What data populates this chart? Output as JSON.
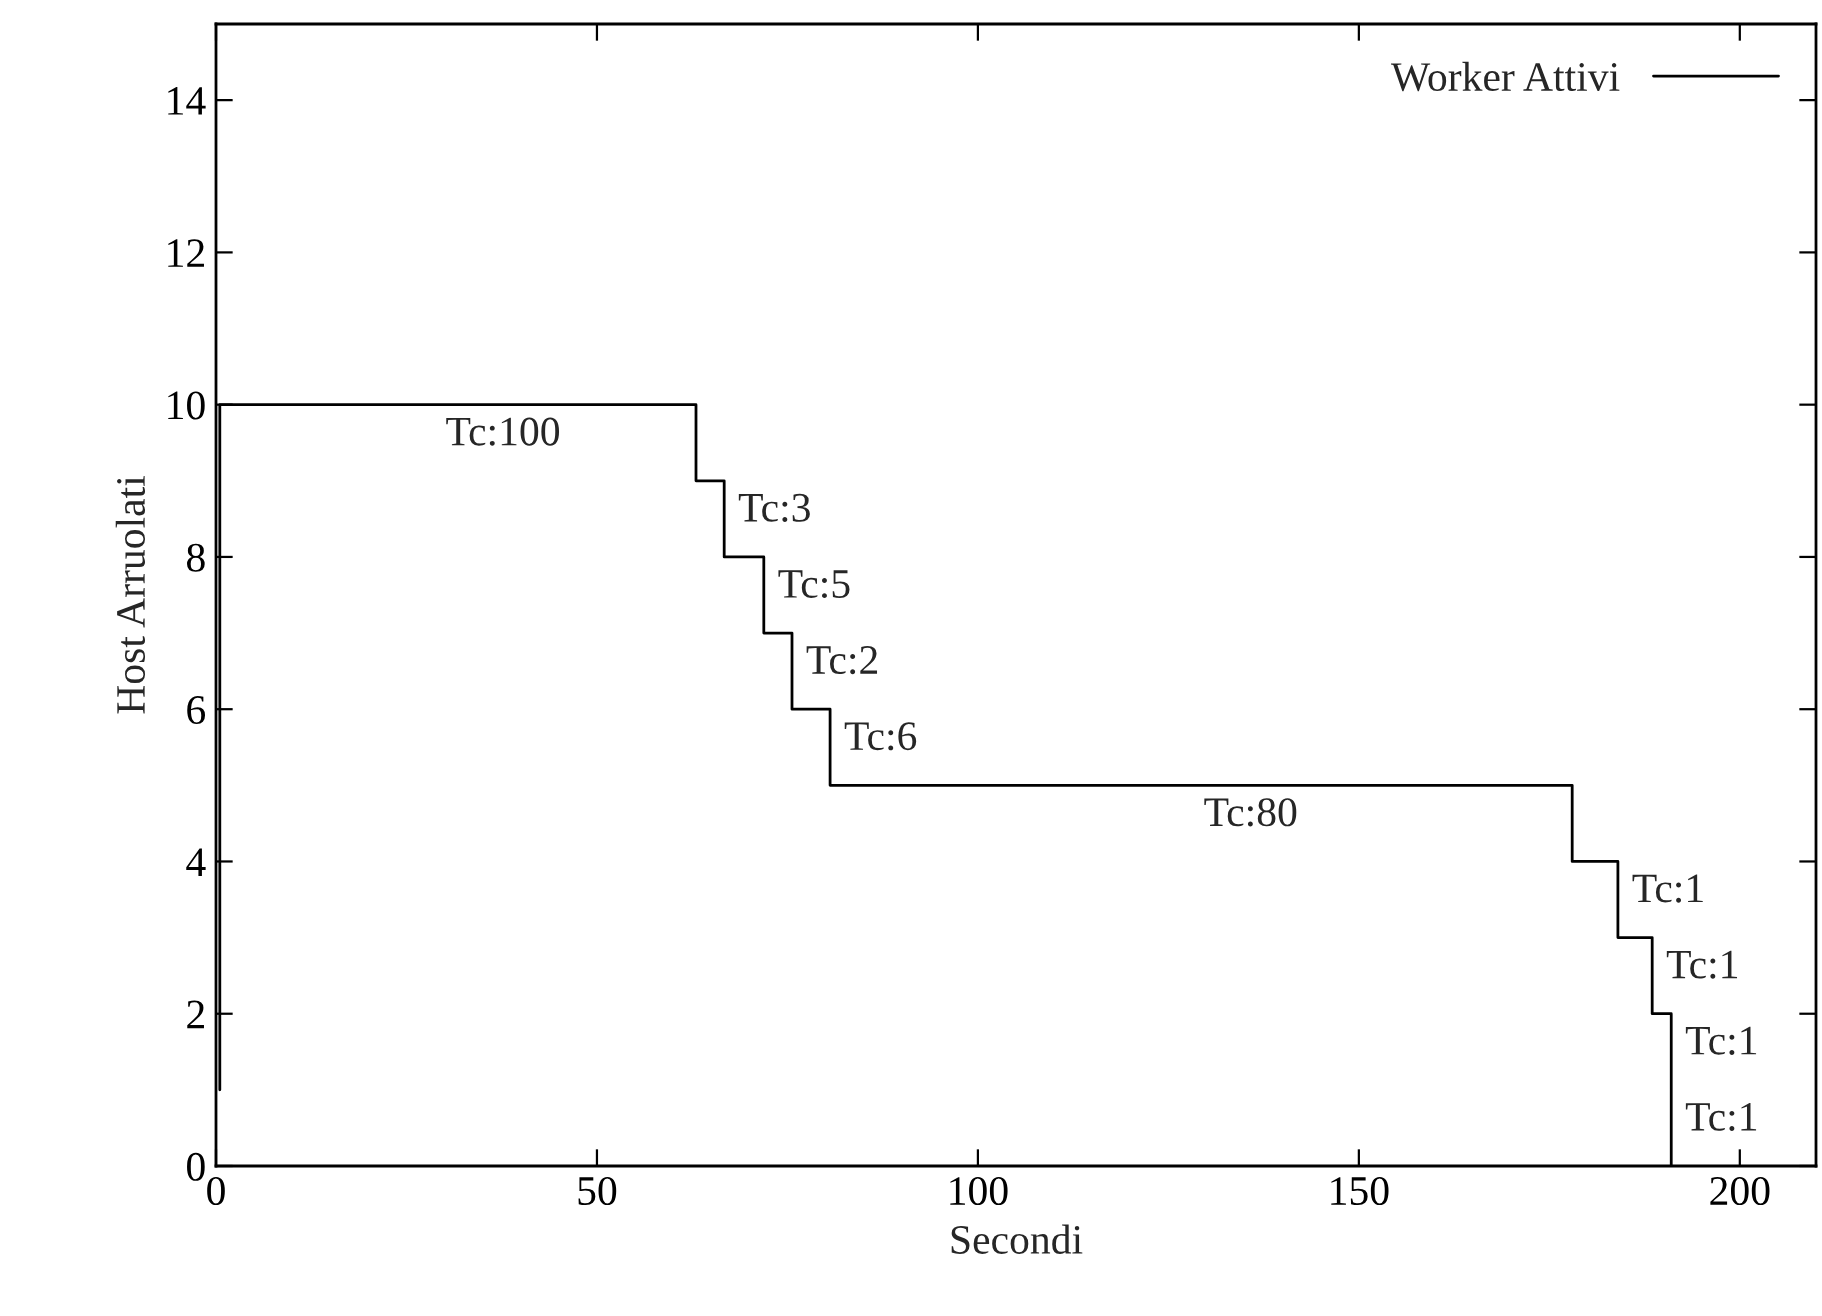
{
  "chart_data": {
    "type": "step",
    "xlabel": "Secondi",
    "ylabel": "Host Arruolati",
    "x": [
      0.5,
      0.5,
      63,
      66.7,
      71.9,
      75.6,
      80.6,
      178,
      184,
      188.5,
      191,
      191
    ],
    "series": [
      {
        "name": "Worker Attivi",
        "color": "#000000",
        "values": [
          1,
          10,
          9,
          8,
          7,
          6,
          5,
          4,
          3,
          2,
          1,
          0
        ]
      }
    ],
    "xlim": [
      0,
      210
    ],
    "ylim": [
      0,
      15
    ],
    "xticks": [
      0,
      50,
      100,
      150,
      200
    ],
    "yticks": [
      0,
      2,
      4,
      6,
      8,
      10,
      12,
      14
    ],
    "annotations": [
      {
        "text": "Tc:100",
        "x": 28.3,
        "y": 10
      },
      {
        "text": "Tc:3",
        "x": 66.7,
        "y": 9
      },
      {
        "text": "Tc:5",
        "x": 71.9,
        "y": 8
      },
      {
        "text": "Tc:2",
        "x": 75.6,
        "y": 7
      },
      {
        "text": "Tc:6",
        "x": 80.6,
        "y": 6
      },
      {
        "text": "Tc:80",
        "x": 127.8,
        "y": 5
      },
      {
        "text": "Tc:1",
        "x": 184,
        "y": 4
      },
      {
        "text": "Tc:1",
        "x": 188.5,
        "y": 3
      },
      {
        "text": "Tc:1",
        "x": 191,
        "y": 2
      },
      {
        "text": "Tc:1",
        "x": 191,
        "y": 1
      }
    ],
    "legend": "top right",
    "grid": false
  }
}
